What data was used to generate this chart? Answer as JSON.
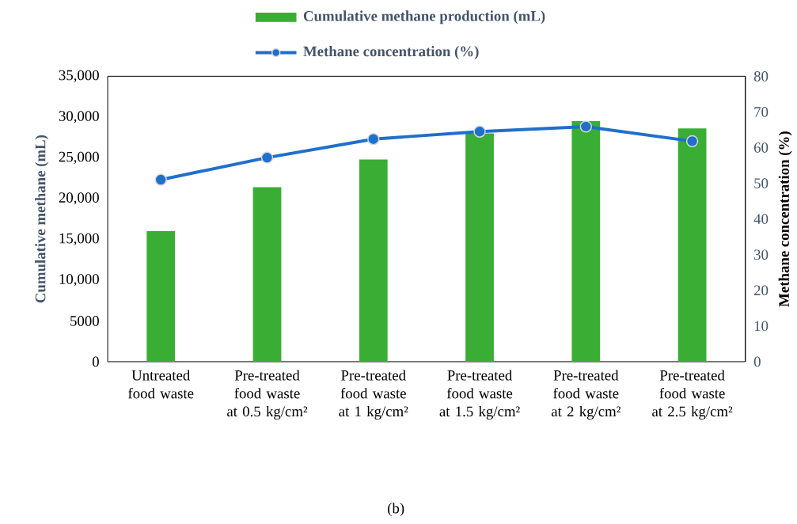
{
  "chart_data": {
    "type": "bar",
    "categories": [
      "Untreated food waste",
      "Pre-treated food waste at 0.5 kg/cm²",
      "Pre-treated food waste at 1 kg/cm²",
      "Pre-treated food waste at 1.5 kg/cm²",
      "Pre-treated food waste at 2 kg/cm²",
      "Pre-treated food waste at 2.5 kg/cm²"
    ],
    "series": [
      {
        "name": "Cumulative methane production (mL)",
        "color": "#3aad35",
        "values": [
          16000,
          21400,
          24800,
          28000,
          29500,
          28600
        ]
      },
      {
        "name": "Methane concentration (%)",
        "type": "line",
        "axis": "y2",
        "color": "#1f6fcc",
        "marker": "circle",
        "values": [
          51,
          57.2,
          62.4,
          64.5,
          65.9,
          61.8
        ]
      }
    ],
    "ylabel": "Cumulative methane (mL)",
    "y2label": "Methane concentration (%)",
    "ylim": [
      0,
      35000
    ],
    "yticks": [
      0,
      5000,
      {
        "value": 10000,
        "label": "10,000"
      },
      {
        "value": 15000,
        "label": "15,000"
      },
      {
        "value": 20000,
        "label": "20,000"
      },
      {
        "value": 25000,
        "label": "25,000"
      },
      {
        "value": 30000,
        "label": "30,000"
      },
      {
        "value": 35000,
        "label": "35,000"
      }
    ],
    "y2lim": [
      0,
      80
    ],
    "y2ticks": [
      0,
      10,
      20,
      30,
      40,
      50,
      60,
      70,
      80
    ],
    "legend": "top",
    "annotations": [
      "(b)"
    ]
  }
}
